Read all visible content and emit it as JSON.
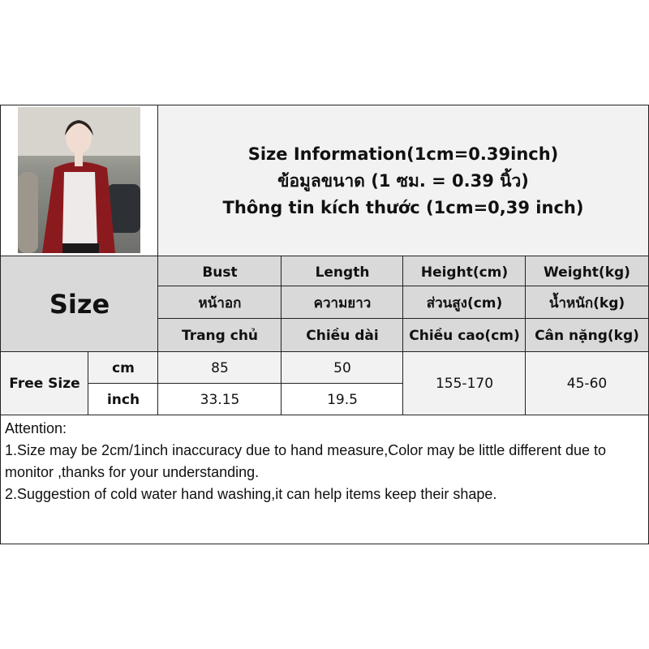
{
  "title": {
    "line1": "Size Information(1cm=0.39inch)",
    "line2": "ข้อมูลขนาด (1 ซม. = 0.39 นิ้ว)",
    "line3": "Thông tin kích thước (1cm=0,39 inch)"
  },
  "size_label": "Size",
  "headers": [
    [
      "Bust",
      "หน้าอก",
      "Trang chủ"
    ],
    [
      "Length",
      "ความยาว",
      "Chiều dài"
    ],
    [
      "Height(cm)",
      "ส่วนสูง(cm)",
      "Chiều cao(cm)"
    ],
    [
      "Weight(kg)",
      "น้ำหนัก(kg)",
      "Cân nặng(kg)"
    ]
  ],
  "row": {
    "name": "Free Size",
    "cm_label": "cm",
    "inch_label": "inch",
    "bust_cm": "85",
    "length_cm": "50",
    "bust_inch": "33.15",
    "length_inch": "19.5",
    "height": "155-170",
    "weight": "45-60"
  },
  "attention": {
    "title": "Attention:",
    "line1": "1.Size may be 2cm/1inch inaccuracy due to hand measure,Color may be little different due to monitor ,thanks for your understanding.",
    "line2": "2.Suggestion of cold water hand washing,it can help items keep their shape."
  },
  "colors": {
    "header": "#d9d9d9",
    "light": "#f2f2f2",
    "cardigan": "#8b1a1f"
  }
}
